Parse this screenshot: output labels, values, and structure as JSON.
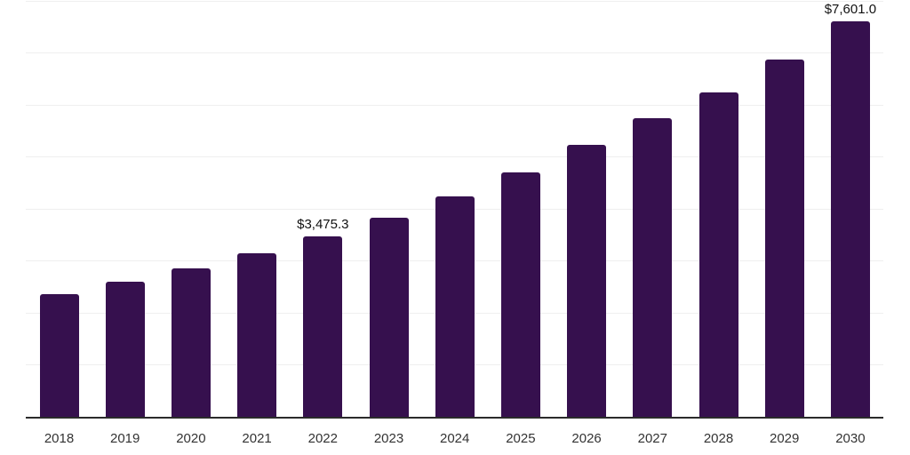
{
  "chart_data": {
    "type": "bar",
    "title": "",
    "xlabel": "",
    "ylabel": "",
    "categories": [
      "2018",
      "2019",
      "2020",
      "2021",
      "2022",
      "2023",
      "2024",
      "2025",
      "2026",
      "2027",
      "2028",
      "2029",
      "2030"
    ],
    "values": [
      2360,
      2600,
      2850,
      3145,
      3475.3,
      3825,
      4240,
      4700,
      5230,
      5740,
      6235,
      6870,
      7601
    ],
    "data_labels": [
      "",
      "",
      "",
      "",
      "$3,475.3",
      "",
      "",
      "",
      "",
      "",
      "",
      "",
      "$7,601.0"
    ],
    "ylim": [
      0,
      8000
    ],
    "gridline_step": 1000,
    "grid": true,
    "legend": "none",
    "colors": {
      "bar": "#36104E",
      "gridline": "#efefef",
      "axis_line": "#2b2b2b",
      "data_label_text": "#111111",
      "tick_label_text": "#333333",
      "background": "#ffffff"
    }
  }
}
